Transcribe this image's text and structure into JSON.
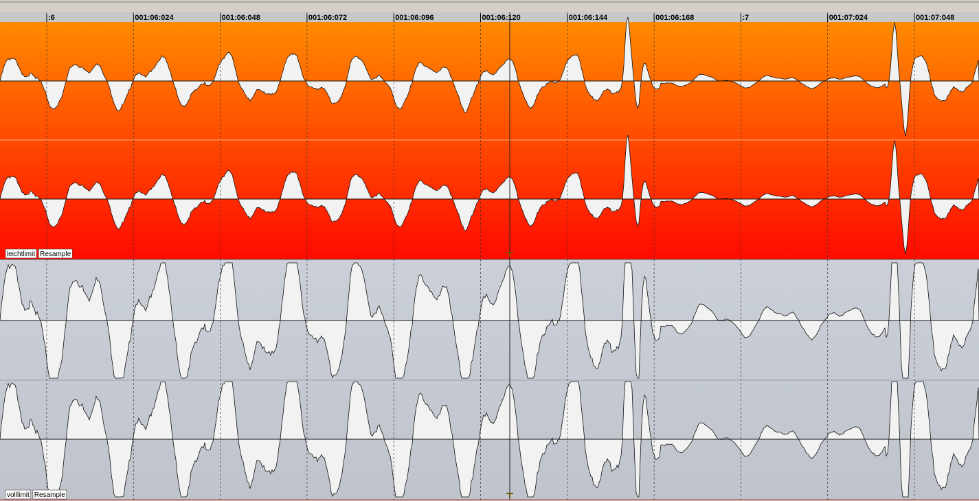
{
  "ruler": {
    "labels": [
      ":6",
      "001:06:024",
      "001:06:048",
      "001:06:072",
      "001:06:096",
      "001:06:120",
      "001:06:144",
      "001:06:168",
      ":7",
      "001:07:024",
      "001:07:048"
    ]
  },
  "tracks": [
    {
      "name": "leichtlimit",
      "mode": "Resample"
    },
    {
      "name": "volllimit",
      "mode": "Resample"
    }
  ]
}
